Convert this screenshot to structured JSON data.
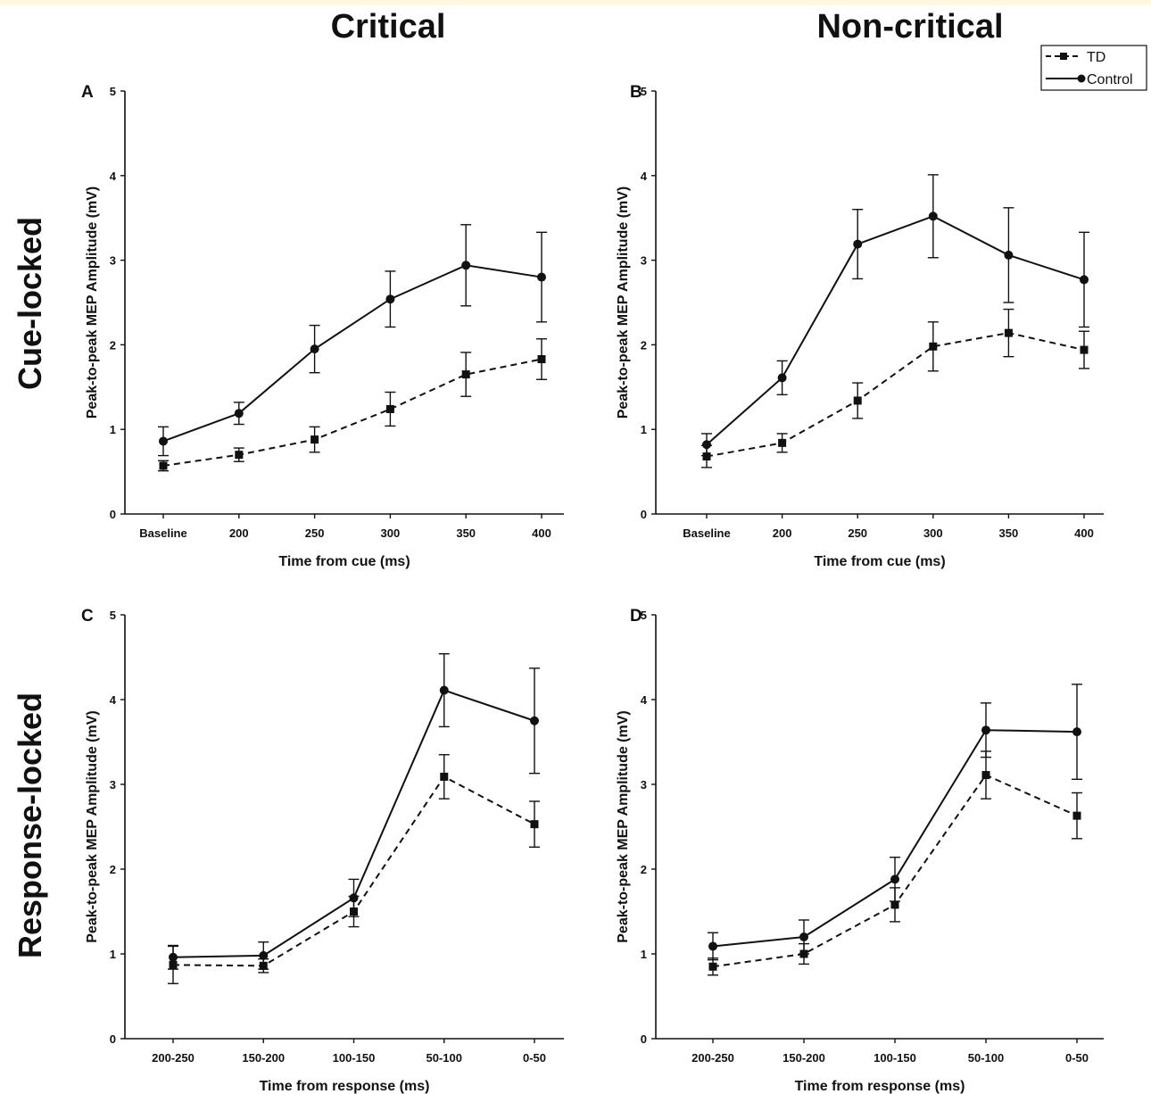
{
  "figure": {
    "column_titles": [
      "Critical",
      "Non-critical"
    ],
    "row_titles": [
      "Cue-locked",
      "Response-locked"
    ],
    "legend": {
      "td_label": "TD",
      "control_label": "Control"
    },
    "colors": {
      "ink": "#111111"
    }
  },
  "chart_data": [
    {
      "panel": "A",
      "type": "line",
      "categories": [
        "Baseline",
        "200",
        "250",
        "300",
        "350",
        "400"
      ],
      "xlabel": "Time from cue (ms)",
      "ylabel": "Peak-to-peak MEP Amplitude (mV)",
      "ylim": [
        0,
        5
      ],
      "yticks": [
        "0",
        "1",
        "2",
        "3",
        "4",
        "5"
      ],
      "series": [
        {
          "name": "TD",
          "style": "dashed",
          "marker": "square",
          "values": [
            0.57,
            0.7,
            0.88,
            1.24,
            1.65,
            1.83
          ],
          "errors": [
            0.06,
            0.08,
            0.15,
            0.2,
            0.26,
            0.24
          ]
        },
        {
          "name": "Control",
          "style": "solid",
          "marker": "circle",
          "values": [
            0.86,
            1.19,
            1.95,
            2.54,
            2.94,
            2.8
          ],
          "errors": [
            0.17,
            0.13,
            0.28,
            0.33,
            0.48,
            0.53
          ]
        }
      ]
    },
    {
      "panel": "B",
      "type": "line",
      "categories": [
        "Baseline",
        "200",
        "250",
        "300",
        "350",
        "400"
      ],
      "xlabel": "Time from cue (ms)",
      "ylabel": "Peak-to-peak MEP Amplitude (mV)",
      "ylim": [
        0,
        5
      ],
      "yticks": [
        "0",
        "1",
        "2",
        "3",
        "4",
        "5"
      ],
      "series": [
        {
          "name": "TD",
          "style": "dashed",
          "marker": "square",
          "values": [
            0.68,
            0.84,
            1.34,
            1.98,
            2.14,
            1.94
          ],
          "errors": [
            0.13,
            0.11,
            0.21,
            0.29,
            0.28,
            0.22
          ]
        },
        {
          "name": "Control",
          "style": "solid",
          "marker": "circle",
          "values": [
            0.82,
            1.61,
            3.19,
            3.52,
            3.06,
            2.77
          ],
          "errors": [
            0.13,
            0.2,
            0.41,
            0.49,
            0.56,
            0.56
          ]
        }
      ]
    },
    {
      "panel": "C",
      "type": "line",
      "categories": [
        "200-250",
        "150-200",
        "100-150",
        "50-100",
        "0-50"
      ],
      "xlabel": "Time from response (ms)",
      "ylabel": "Peak-to-peak MEP Amplitude (mV)",
      "ylim": [
        0,
        5
      ],
      "yticks": [
        "0",
        "1",
        "2",
        "3",
        "4",
        "5"
      ],
      "series": [
        {
          "name": "TD",
          "style": "dashed",
          "marker": "square",
          "values": [
            0.87,
            0.86,
            1.5,
            3.09,
            2.53
          ],
          "errors": [
            0.22,
            0.08,
            0.18,
            0.26,
            0.27
          ]
        },
        {
          "name": "Control",
          "style": "solid",
          "marker": "circle",
          "values": [
            0.96,
            0.98,
            1.66,
            4.11,
            3.75
          ],
          "errors": [
            0.14,
            0.16,
            0.22,
            0.43,
            0.62
          ]
        }
      ]
    },
    {
      "panel": "D",
      "type": "line",
      "categories": [
        "200-250",
        "150-200",
        "100-150",
        "50-100",
        "0-50"
      ],
      "xlabel": "Time from response (ms)",
      "ylabel": "Peak-to-peak MEP Amplitude (mV)",
      "ylim": [
        0,
        5
      ],
      "yticks": [
        "0",
        "1",
        "2",
        "3",
        "4",
        "5"
      ],
      "series": [
        {
          "name": "TD",
          "style": "dashed",
          "marker": "square",
          "values": [
            0.85,
            1.0,
            1.58,
            3.11,
            2.63
          ],
          "errors": [
            0.1,
            0.12,
            0.2,
            0.28,
            0.27
          ]
        },
        {
          "name": "Control",
          "style": "solid",
          "marker": "circle",
          "values": [
            1.09,
            1.2,
            1.88,
            3.64,
            3.62
          ],
          "errors": [
            0.16,
            0.2,
            0.26,
            0.32,
            0.56
          ]
        }
      ]
    }
  ]
}
